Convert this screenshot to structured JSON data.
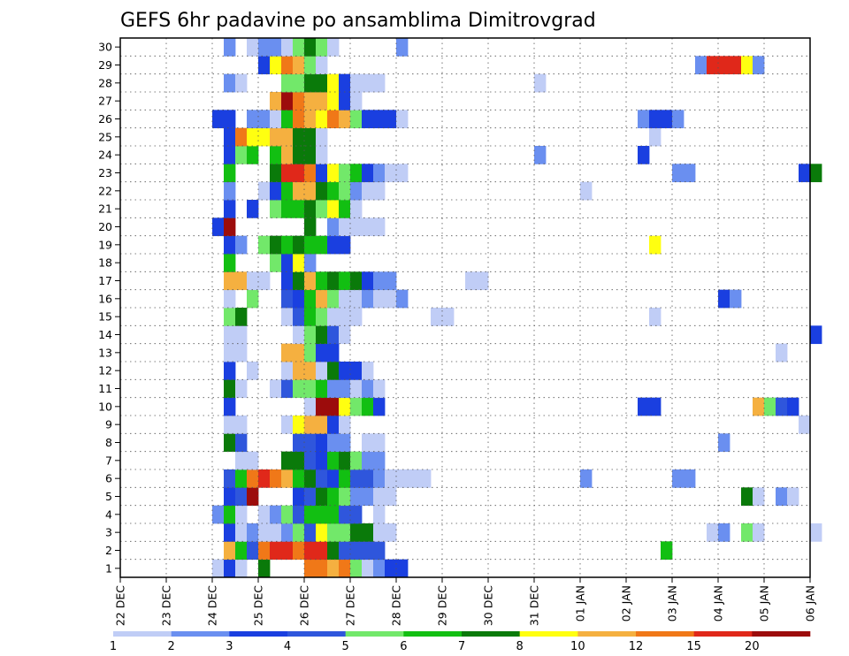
{
  "chart_data": {
    "type": "heatmap",
    "title": "GEFS 6hr padavine po ansamblima Dimitrovgrad",
    "xlabel": "",
    "ylabel": "",
    "x_tick_labels": [
      "22 DEC",
      "23 DEC",
      "24 DEC",
      "25 DEC",
      "26 DEC",
      "27 DEC",
      "28 DEC",
      "29 DEC",
      "30 DEC",
      "31 DEC",
      "01 JAN",
      "02 JAN",
      "03 JAN",
      "04 JAN",
      "05 JAN",
      "06 JAN"
    ],
    "time_steps_per_day": 4,
    "members": [
      1,
      2,
      3,
      4,
      5,
      6,
      7,
      8,
      9,
      10,
      11,
      12,
      13,
      14,
      15,
      16,
      17,
      18,
      19,
      20,
      21,
      22,
      23,
      24,
      25,
      26,
      27,
      28,
      29,
      30
    ],
    "grid": true,
    "color_levels": [
      1,
      2,
      3,
      4,
      5,
      6,
      7,
      8,
      10,
      12,
      15,
      20
    ],
    "colors": [
      "#c0cdf6",
      "#6a8ff0",
      "#1a3fe0",
      "#2f56dc",
      "#72e86a",
      "#12bf12",
      "#0a7a0a",
      "#ffff10",
      "#f5b040",
      "#f07818",
      "#e0281a",
      "#9c0c0c"
    ],
    "legend_placement": "bottom",
    "cells_note_format": "[time_step_index, level_index 0-11]",
    "cells": {
      "1": [
        [
          8,
          0
        ],
        [
          9,
          2
        ],
        [
          10,
          0
        ],
        [
          12,
          6
        ],
        [
          16,
          9
        ],
        [
          17,
          9
        ],
        [
          18,
          8
        ],
        [
          19,
          9
        ],
        [
          20,
          4
        ],
        [
          21,
          0
        ],
        [
          22,
          1
        ],
        [
          23,
          2
        ],
        [
          24,
          2
        ]
      ],
      "2": [
        [
          9,
          8
        ],
        [
          10,
          5
        ],
        [
          11,
          3
        ],
        [
          12,
          9
        ],
        [
          13,
          10
        ],
        [
          14,
          10
        ],
        [
          15,
          9
        ],
        [
          16,
          10
        ],
        [
          17,
          10
        ],
        [
          18,
          6
        ],
        [
          19,
          3
        ],
        [
          20,
          3
        ],
        [
          21,
          3
        ],
        [
          22,
          3
        ],
        [
          47,
          5
        ]
      ],
      "3": [
        [
          9,
          2
        ],
        [
          10,
          0
        ],
        [
          11,
          1
        ],
        [
          12,
          0
        ],
        [
          13,
          0
        ],
        [
          14,
          1
        ],
        [
          15,
          4
        ],
        [
          16,
          3
        ],
        [
          17,
          7
        ],
        [
          18,
          4
        ],
        [
          19,
          4
        ],
        [
          20,
          6
        ],
        [
          21,
          6
        ],
        [
          22,
          0
        ],
        [
          23,
          0
        ],
        [
          51,
          0
        ],
        [
          52,
          1
        ],
        [
          54,
          4
        ],
        [
          55,
          0
        ],
        [
          60,
          0
        ]
      ],
      "4": [
        [
          8,
          1
        ],
        [
          9,
          5
        ],
        [
          10,
          0
        ],
        [
          12,
          0
        ],
        [
          13,
          1
        ],
        [
          14,
          4
        ],
        [
          15,
          3
        ],
        [
          16,
          5
        ],
        [
          17,
          5
        ],
        [
          18,
          5
        ],
        [
          19,
          3
        ],
        [
          20,
          3
        ],
        [
          22,
          0
        ]
      ],
      "5": [
        [
          9,
          2
        ],
        [
          10,
          3
        ],
        [
          11,
          11
        ],
        [
          15,
          2
        ],
        [
          16,
          3
        ],
        [
          17,
          6
        ],
        [
          18,
          5
        ],
        [
          19,
          4
        ],
        [
          20,
          1
        ],
        [
          21,
          1
        ],
        [
          22,
          0
        ],
        [
          23,
          0
        ],
        [
          54,
          6
        ],
        [
          55,
          0
        ],
        [
          57,
          1
        ],
        [
          58,
          0
        ]
      ],
      "6": [
        [
          9,
          3
        ],
        [
          10,
          5
        ],
        [
          11,
          9
        ],
        [
          12,
          10
        ],
        [
          13,
          9
        ],
        [
          14,
          8
        ],
        [
          15,
          5
        ],
        [
          16,
          6
        ],
        [
          17,
          3
        ],
        [
          18,
          2
        ],
        [
          19,
          5
        ],
        [
          20,
          3
        ],
        [
          21,
          3
        ],
        [
          22,
          1
        ],
        [
          23,
          0
        ],
        [
          24,
          0
        ],
        [
          25,
          0
        ],
        [
          26,
          0
        ],
        [
          40,
          1
        ],
        [
          48,
          1
        ],
        [
          49,
          1
        ]
      ],
      "7": [
        [
          10,
          0
        ],
        [
          11,
          0
        ],
        [
          14,
          6
        ],
        [
          15,
          6
        ],
        [
          16,
          3
        ],
        [
          17,
          2
        ],
        [
          18,
          5
        ],
        [
          19,
          6
        ],
        [
          20,
          4
        ],
        [
          21,
          1
        ],
        [
          22,
          1
        ]
      ],
      "8": [
        [
          9,
          6
        ],
        [
          10,
          3
        ],
        [
          15,
          3
        ],
        [
          16,
          3
        ],
        [
          17,
          2
        ],
        [
          18,
          1
        ],
        [
          19,
          1
        ],
        [
          21,
          0
        ],
        [
          22,
          0
        ],
        [
          52,
          1
        ]
      ],
      "9": [
        [
          9,
          0
        ],
        [
          10,
          0
        ],
        [
          14,
          0
        ],
        [
          15,
          7
        ],
        [
          16,
          8
        ],
        [
          17,
          8
        ],
        [
          18,
          2
        ],
        [
          19,
          0
        ],
        [
          59,
          0
        ]
      ],
      "10": [
        [
          9,
          2
        ],
        [
          16,
          0
        ],
        [
          17,
          11
        ],
        [
          18,
          11
        ],
        [
          19,
          7
        ],
        [
          20,
          4
        ],
        [
          21,
          5
        ],
        [
          22,
          2
        ],
        [
          45,
          2
        ],
        [
          46,
          2
        ],
        [
          55,
          8
        ],
        [
          56,
          4
        ],
        [
          57,
          3
        ],
        [
          58,
          2
        ]
      ],
      "11": [
        [
          9,
          6
        ],
        [
          10,
          0
        ],
        [
          13,
          0
        ],
        [
          14,
          3
        ],
        [
          15,
          4
        ],
        [
          16,
          4
        ],
        [
          17,
          5
        ],
        [
          18,
          1
        ],
        [
          19,
          1
        ],
        [
          20,
          0
        ],
        [
          21,
          1
        ],
        [
          22,
          0
        ]
      ],
      "12": [
        [
          9,
          2
        ],
        [
          11,
          0
        ],
        [
          14,
          0
        ],
        [
          15,
          8
        ],
        [
          16,
          8
        ],
        [
          17,
          0
        ],
        [
          18,
          6
        ],
        [
          19,
          2
        ],
        [
          20,
          2
        ],
        [
          21,
          0
        ]
      ],
      "13": [
        [
          9,
          0
        ],
        [
          10,
          0
        ],
        [
          14,
          8
        ],
        [
          15,
          8
        ],
        [
          16,
          4
        ],
        [
          17,
          2
        ],
        [
          18,
          2
        ],
        [
          57,
          0
        ]
      ],
      "14": [
        [
          9,
          0
        ],
        [
          10,
          0
        ],
        [
          15,
          0
        ],
        [
          16,
          4
        ],
        [
          17,
          6
        ],
        [
          18,
          3
        ],
        [
          19,
          0
        ],
        [
          60,
          2
        ]
      ],
      "15": [
        [
          9,
          4
        ],
        [
          10,
          6
        ],
        [
          14,
          0
        ],
        [
          15,
          3
        ],
        [
          16,
          5
        ],
        [
          17,
          4
        ],
        [
          18,
          0
        ],
        [
          19,
          0
        ],
        [
          20,
          0
        ],
        [
          27,
          0
        ],
        [
          28,
          0
        ],
        [
          46,
          0
        ]
      ],
      "16": [
        [
          9,
          0
        ],
        [
          11,
          4
        ],
        [
          14,
          3
        ],
        [
          15,
          2
        ],
        [
          16,
          5
        ],
        [
          17,
          8
        ],
        [
          18,
          4
        ],
        [
          19,
          0
        ],
        [
          20,
          0
        ],
        [
          21,
          1
        ],
        [
          22,
          0
        ],
        [
          23,
          0
        ],
        [
          24,
          1
        ],
        [
          52,
          2
        ],
        [
          53,
          1
        ]
      ],
      "17": [
        [
          9,
          8
        ],
        [
          10,
          8
        ],
        [
          11,
          0
        ],
        [
          12,
          0
        ],
        [
          14,
          2
        ],
        [
          15,
          6
        ],
        [
          16,
          8
        ],
        [
          17,
          5
        ],
        [
          18,
          6
        ],
        [
          19,
          5
        ],
        [
          20,
          6
        ],
        [
          21,
          2
        ],
        [
          22,
          1
        ],
        [
          23,
          1
        ],
        [
          30,
          0
        ],
        [
          31,
          0
        ]
      ],
      "18": [
        [
          9,
          5
        ],
        [
          13,
          4
        ],
        [
          14,
          2
        ],
        [
          15,
          7
        ],
        [
          16,
          1
        ]
      ],
      "19": [
        [
          9,
          2
        ],
        [
          10,
          1
        ],
        [
          12,
          4
        ],
        [
          13,
          6
        ],
        [
          14,
          5
        ],
        [
          15,
          6
        ],
        [
          16,
          5
        ],
        [
          17,
          5
        ],
        [
          18,
          2
        ],
        [
          19,
          2
        ],
        [
          46,
          7
        ]
      ],
      "20": [
        [
          8,
          2
        ],
        [
          9,
          11
        ],
        [
          16,
          6
        ],
        [
          18,
          1
        ],
        [
          19,
          0
        ],
        [
          20,
          0
        ],
        [
          21,
          0
        ],
        [
          22,
          0
        ]
      ],
      "21": [
        [
          9,
          2
        ],
        [
          11,
          2
        ],
        [
          13,
          4
        ],
        [
          14,
          5
        ],
        [
          15,
          5
        ],
        [
          16,
          6
        ],
        [
          17,
          4
        ],
        [
          18,
          7
        ],
        [
          19,
          5
        ],
        [
          20,
          0
        ]
      ],
      "22": [
        [
          9,
          1
        ],
        [
          12,
          0
        ],
        [
          13,
          2
        ],
        [
          14,
          5
        ],
        [
          15,
          8
        ],
        [
          16,
          8
        ],
        [
          17,
          6
        ],
        [
          18,
          5
        ],
        [
          19,
          4
        ],
        [
          20,
          1
        ],
        [
          21,
          0
        ],
        [
          22,
          0
        ],
        [
          40,
          0
        ]
      ],
      "23": [
        [
          9,
          5
        ],
        [
          13,
          6
        ],
        [
          14,
          10
        ],
        [
          15,
          10
        ],
        [
          16,
          9
        ],
        [
          17,
          2
        ],
        [
          18,
          7
        ],
        [
          19,
          4
        ],
        [
          20,
          5
        ],
        [
          21,
          2
        ],
        [
          22,
          1
        ],
        [
          23,
          0
        ],
        [
          24,
          0
        ],
        [
          48,
          1
        ],
        [
          49,
          1
        ],
        [
          59,
          2
        ],
        [
          60,
          6
        ]
      ],
      "24": [
        [
          9,
          2
        ],
        [
          10,
          4
        ],
        [
          11,
          5
        ],
        [
          13,
          5
        ],
        [
          14,
          8
        ],
        [
          15,
          6
        ],
        [
          16,
          6
        ],
        [
          17,
          0
        ],
        [
          36,
          1
        ],
        [
          45,
          2
        ]
      ],
      "25": [
        [
          9,
          2
        ],
        [
          10,
          9
        ],
        [
          11,
          7
        ],
        [
          12,
          7
        ],
        [
          13,
          8
        ],
        [
          14,
          8
        ],
        [
          15,
          6
        ],
        [
          16,
          6
        ],
        [
          17,
          0
        ],
        [
          46,
          0
        ]
      ],
      "26": [
        [
          8,
          2
        ],
        [
          9,
          2
        ],
        [
          11,
          1
        ],
        [
          12,
          1
        ],
        [
          13,
          0
        ],
        [
          14,
          5
        ],
        [
          15,
          9
        ],
        [
          16,
          8
        ],
        [
          17,
          7
        ],
        [
          18,
          9
        ],
        [
          19,
          8
        ],
        [
          20,
          4
        ],
        [
          21,
          2
        ],
        [
          22,
          2
        ],
        [
          23,
          2
        ],
        [
          24,
          0
        ],
        [
          45,
          1
        ],
        [
          46,
          2
        ],
        [
          47,
          2
        ],
        [
          48,
          1
        ]
      ],
      "27": [
        [
          13,
          8
        ],
        [
          14,
          11
        ],
        [
          15,
          9
        ],
        [
          16,
          8
        ],
        [
          17,
          8
        ],
        [
          18,
          7
        ],
        [
          19,
          2
        ],
        [
          20,
          0
        ]
      ],
      "28": [
        [
          9,
          1
        ],
        [
          10,
          0
        ],
        [
          14,
          4
        ],
        [
          15,
          4
        ],
        [
          16,
          6
        ],
        [
          17,
          6
        ],
        [
          18,
          7
        ],
        [
          19,
          2
        ],
        [
          20,
          0
        ],
        [
          21,
          0
        ],
        [
          22,
          0
        ],
        [
          36,
          0
        ]
      ],
      "29": [
        [
          12,
          2
        ],
        [
          13,
          7
        ],
        [
          14,
          9
        ],
        [
          15,
          8
        ],
        [
          16,
          4
        ],
        [
          17,
          0
        ],
        [
          50,
          1
        ],
        [
          51,
          10
        ],
        [
          52,
          10
        ],
        [
          53,
          10
        ],
        [
          54,
          7
        ],
        [
          55,
          1
        ]
      ],
      "30": [
        [
          9,
          1
        ],
        [
          11,
          0
        ],
        [
          12,
          1
        ],
        [
          13,
          1
        ],
        [
          14,
          0
        ],
        [
          15,
          4
        ],
        [
          16,
          6
        ],
        [
          17,
          4
        ],
        [
          18,
          0
        ],
        [
          24,
          1
        ]
      ]
    }
  }
}
